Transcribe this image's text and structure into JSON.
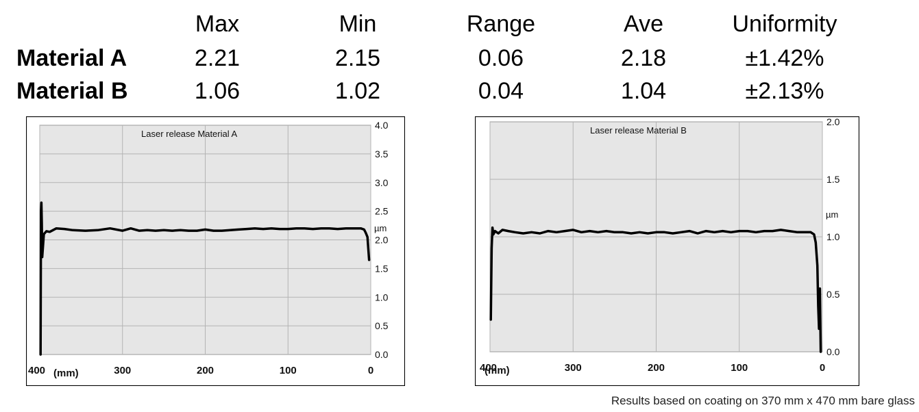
{
  "table": {
    "headers": [
      "Max",
      "Min",
      "Range",
      "Ave",
      "Uniformity"
    ],
    "rows": [
      {
        "label": "Material A",
        "values": [
          "2.21",
          "2.15",
          "0.06",
          "2.18",
          "±1.42%"
        ]
      },
      {
        "label": "Material B",
        "values": [
          "1.06",
          "1.02",
          "0.04",
          "1.04",
          "±2.13%"
        ]
      }
    ]
  },
  "footnote": "Results based on coating on 370 mm x 470 mm bare glass",
  "chart_data": [
    {
      "type": "line",
      "title": "Laser release Material A",
      "xlabel": "(mm)",
      "ylabel": "µm",
      "xlim": [
        400,
        0
      ],
      "ylim": [
        0,
        4.0
      ],
      "x_ticks": [
        "400",
        "300",
        "200",
        "100",
        "0"
      ],
      "y_ticks": [
        "0.0",
        "0.5",
        "1.0",
        "1.5",
        "2.0",
        "2.5",
        "3.0",
        "3.5",
        "4.0"
      ],
      "grid": true,
      "line_color": "#000000",
      "plot_bg": "#e6e6e6",
      "series": [
        {
          "x": [
            399,
            398.5,
            398,
            397.5,
            397,
            396,
            395,
            392,
            388,
            380,
            370,
            360,
            345,
            330,
            315,
            300,
            290,
            280,
            270,
            260,
            250,
            240,
            230,
            220,
            210,
            200,
            190,
            180,
            170,
            160,
            150,
            140,
            130,
            120,
            110,
            100,
            90,
            80,
            70,
            60,
            50,
            40,
            30,
            20,
            12,
            8,
            6,
            4,
            3,
            2
          ],
          "y": [
            0.0,
            2.5,
            2.65,
            2.3,
            1.7,
            1.9,
            2.1,
            2.15,
            2.14,
            2.2,
            2.19,
            2.17,
            2.16,
            2.17,
            2.2,
            2.16,
            2.2,
            2.16,
            2.17,
            2.16,
            2.17,
            2.16,
            2.17,
            2.16,
            2.16,
            2.18,
            2.16,
            2.16,
            2.17,
            2.18,
            2.19,
            2.2,
            2.19,
            2.2,
            2.19,
            2.19,
            2.2,
            2.2,
            2.19,
            2.2,
            2.2,
            2.19,
            2.2,
            2.2,
            2.2,
            2.18,
            2.12,
            2.05,
            1.85,
            1.65
          ]
        }
      ]
    },
    {
      "type": "line",
      "title": "Laser release Material B",
      "xlabel": "(mm)",
      "ylabel": "µm",
      "xlim": [
        400,
        0
      ],
      "ylim": [
        0,
        2.0
      ],
      "x_ticks": [
        "400",
        "300",
        "200",
        "100",
        "0"
      ],
      "y_ticks": [
        "0.0",
        "0.5",
        "1.0",
        "1.5",
        "2.0"
      ],
      "grid": true,
      "line_color": "#000000",
      "plot_bg": "#e6e6e6",
      "series": [
        {
          "x": [
            399,
            398,
            397,
            396,
            394,
            390,
            385,
            378,
            370,
            360,
            350,
            340,
            330,
            320,
            310,
            300,
            290,
            280,
            270,
            260,
            250,
            240,
            230,
            220,
            210,
            200,
            190,
            180,
            170,
            160,
            150,
            140,
            130,
            120,
            110,
            100,
            90,
            80,
            70,
            60,
            50,
            40,
            30,
            20,
            14,
            10,
            8,
            6,
            5,
            4,
            3,
            2
          ],
          "y": [
            0.28,
            0.9,
            1.08,
            1.02,
            1.05,
            1.03,
            1.06,
            1.05,
            1.04,
            1.03,
            1.04,
            1.03,
            1.05,
            1.04,
            1.05,
            1.06,
            1.04,
            1.05,
            1.04,
            1.05,
            1.04,
            1.04,
            1.03,
            1.04,
            1.03,
            1.04,
            1.04,
            1.03,
            1.04,
            1.05,
            1.03,
            1.05,
            1.04,
            1.05,
            1.04,
            1.05,
            1.05,
            1.04,
            1.05,
            1.05,
            1.06,
            1.05,
            1.04,
            1.04,
            1.04,
            1.02,
            0.95,
            0.75,
            0.4,
            0.2,
            0.55,
            0.0
          ]
        }
      ]
    }
  ]
}
